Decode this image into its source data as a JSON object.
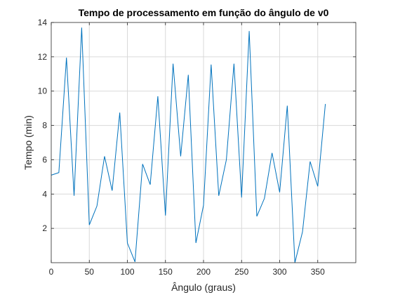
{
  "chart_data": {
    "type": "line",
    "title": "Tempo de processamento em função do ângulo de v0",
    "xlabel": "Ângulo (graus)",
    "ylabel": "Tempo (min)",
    "xlim": [
      0,
      400
    ],
    "ylim": [
      0,
      14
    ],
    "xticks": [
      0,
      50,
      100,
      150,
      200,
      250,
      300,
      350
    ],
    "yticks": [
      2,
      4,
      6,
      8,
      10,
      12,
      14
    ],
    "grid": true,
    "line_color": "#0072BD",
    "series": [
      {
        "x": [
          0,
          10,
          20,
          30,
          40,
          50,
          60,
          70,
          80,
          90,
          100,
          110,
          120,
          130,
          140,
          150,
          160,
          170,
          180,
          190,
          200,
          210,
          220,
          230,
          240,
          250,
          260,
          270,
          280,
          290,
          300,
          310,
          320,
          330,
          340,
          350,
          360
        ],
        "values": [
          5.1,
          5.25,
          11.95,
          3.9,
          13.7,
          2.2,
          3.3,
          6.2,
          4.2,
          8.75,
          1.15,
          0.05,
          5.75,
          4.55,
          9.7,
          2.75,
          11.6,
          6.2,
          10.95,
          1.15,
          3.35,
          11.55,
          3.9,
          6.0,
          11.6,
          3.8,
          13.5,
          2.7,
          3.75,
          6.4,
          4.1,
          9.15,
          0.0,
          1.8,
          5.9,
          4.45,
          9.25
        ]
      }
    ]
  }
}
